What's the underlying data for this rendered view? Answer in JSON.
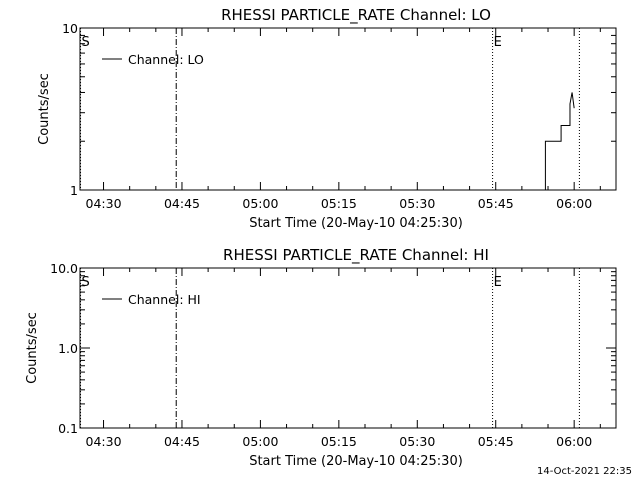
{
  "chart_data": [
    {
      "type": "line",
      "title": "RHESSI PARTICLE_RATE Channel: LO",
      "xlabel": "Start Time (20-May-10 04:25:30)",
      "ylabel": "Counts/sec",
      "y_scale": "log",
      "ylim": [
        1,
        10
      ],
      "y_ticks": [
        "1",
        "10"
      ],
      "x_ticks": [
        "04:30",
        "04:45",
        "05:00",
        "05:15",
        "05:30",
        "05:45",
        "06:00"
      ],
      "x_tick_minutes": [
        30,
        45,
        60,
        75,
        90,
        105,
        120
      ],
      "xlim_minutes": [
        25.5,
        128
      ],
      "legend": "top-left",
      "markers": [
        {
          "label": "S",
          "minute": 25.6,
          "style": "dotted"
        },
        {
          "label": "",
          "minute": 43.9,
          "style": "dash-dot"
        },
        {
          "label": "E",
          "minute": 104.4,
          "style": "dotted"
        },
        {
          "label": "",
          "minute": 121.0,
          "style": "dotted"
        }
      ],
      "series": [
        {
          "name": "Channel: LO",
          "x_minutes": [
            114.5,
            114.5,
            117.5,
            117.5,
            119.2,
            119.2,
            119.6,
            120.0
          ],
          "values": [
            1,
            2,
            2,
            2.5,
            2.5,
            3.4,
            4.0,
            3.2
          ]
        }
      ]
    },
    {
      "type": "line",
      "title": "RHESSI PARTICLE_RATE Channel: HI",
      "xlabel": "Start Time (20-May-10 04:25:30)",
      "ylabel": "Counts/sec",
      "y_scale": "log",
      "ylim": [
        0.1,
        10
      ],
      "y_ticks": [
        "0.1",
        "1.0",
        "10.0"
      ],
      "x_ticks": [
        "04:30",
        "04:45",
        "05:00",
        "05:15",
        "05:30",
        "05:45",
        "06:00"
      ],
      "x_tick_minutes": [
        30,
        45,
        60,
        75,
        90,
        105,
        120
      ],
      "xlim_minutes": [
        25.5,
        128
      ],
      "legend": "top-left",
      "markers": [
        {
          "label": "S",
          "minute": 25.6,
          "style": "dotted"
        },
        {
          "label": "",
          "minute": 43.9,
          "style": "dash-dot"
        },
        {
          "label": "E",
          "minute": 104.4,
          "style": "dotted"
        },
        {
          "label": "",
          "minute": 121.0,
          "style": "dotted"
        }
      ],
      "series": [
        {
          "name": "Channel: HI",
          "x_minutes": [],
          "values": []
        }
      ]
    }
  ],
  "footer": {
    "timestamp": "14-Oct-2021 22:35"
  }
}
